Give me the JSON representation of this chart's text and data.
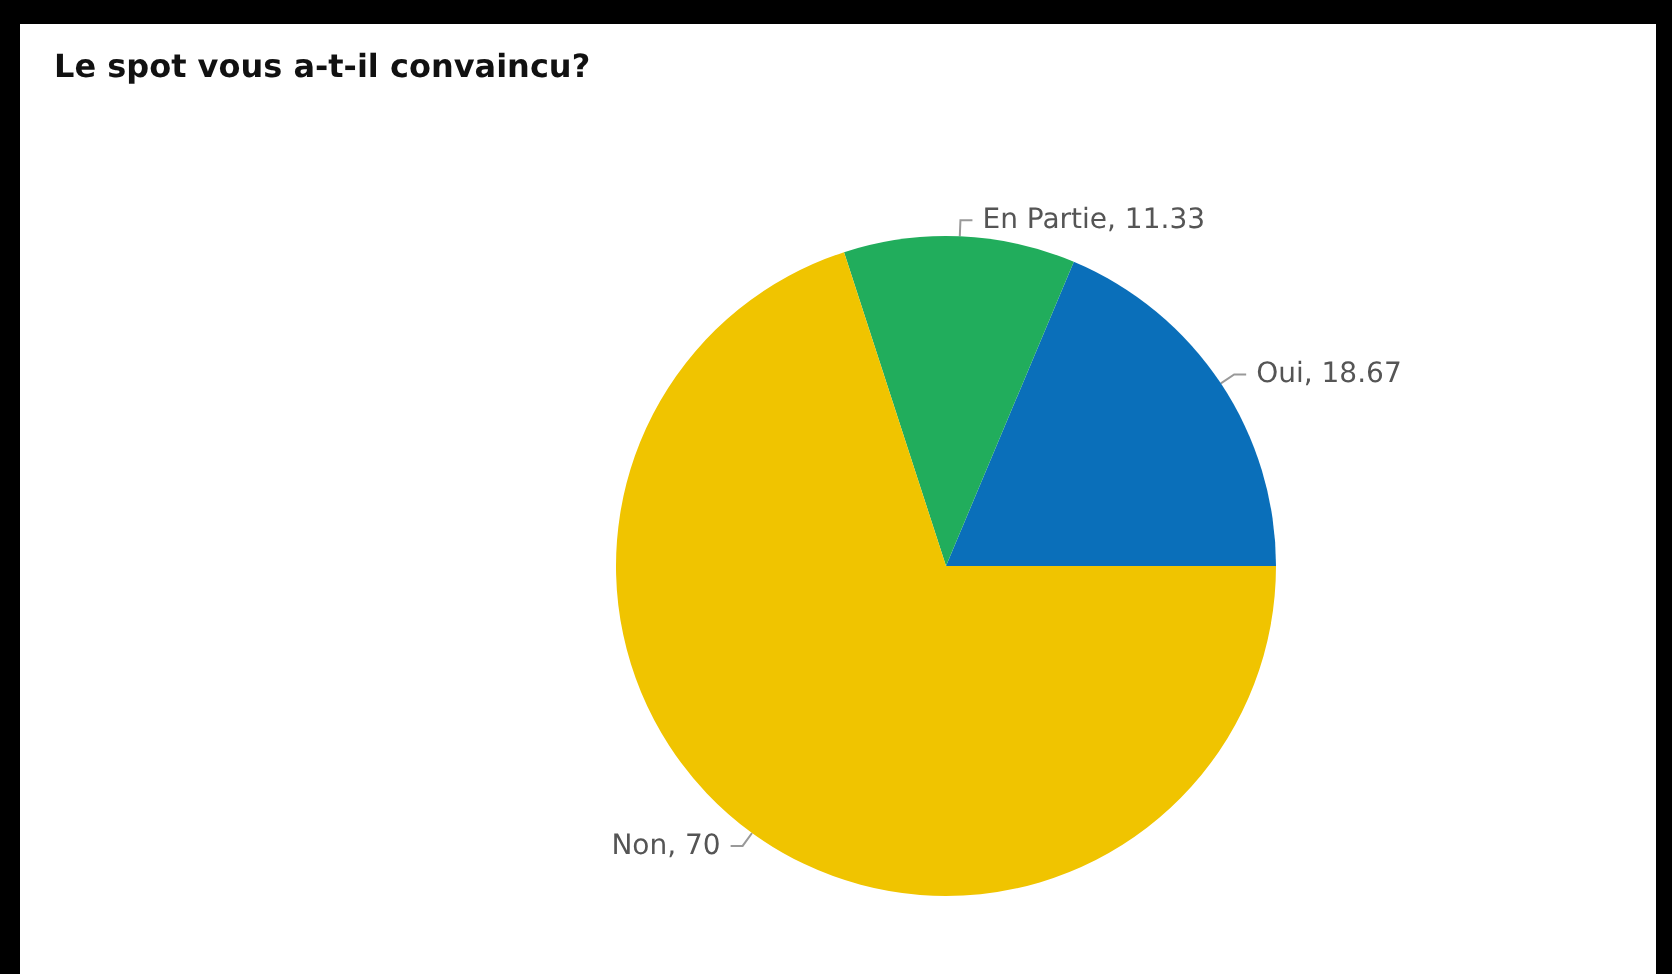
{
  "chart_data": {
    "type": "pie",
    "title": "Le spot vous a-t-il convaincu?",
    "categories": [
      "Oui",
      "En Partie",
      "Non"
    ],
    "values": [
      18.67,
      11.33,
      70
    ],
    "value_labels": [
      ", 18.67",
      ", 11.33",
      ", 70"
    ],
    "colors": [
      "#0a6fba",
      "#21ad5c",
      "#f0c400"
    ],
    "legend": false
  }
}
